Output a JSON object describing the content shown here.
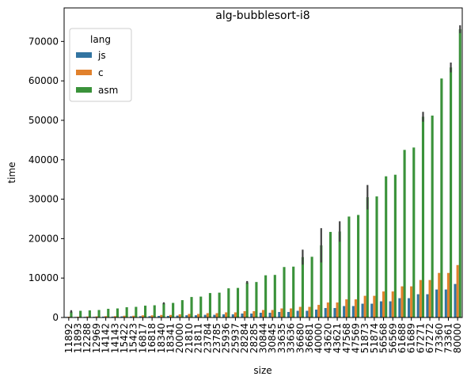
{
  "chart_data": {
    "type": "bar",
    "title": "alg-bubblesort-i8",
    "xlabel": "size",
    "ylabel": "time",
    "ylim": [
      0,
      78500
    ],
    "yticks": [
      0,
      10000,
      20000,
      30000,
      40000,
      50000,
      60000,
      70000
    ],
    "grid": false,
    "legend": {
      "title": "lang",
      "placement": "top-left"
    },
    "categories": [
      "11892",
      "11893",
      "12288",
      "12969",
      "14142",
      "14143",
      "15422",
      "15423",
      "16817",
      "16818",
      "18340",
      "18341",
      "20000",
      "21810",
      "21811",
      "23784",
      "23785",
      "25936",
      "25937",
      "28284",
      "28285",
      "30844",
      "30845",
      "33635",
      "33636",
      "36680",
      "36681",
      "40000",
      "43620",
      "43621",
      "47568",
      "47569",
      "51873",
      "51874",
      "56568",
      "56569",
      "61688",
      "61689",
      "67271",
      "67272",
      "73360",
      "73361",
      "80000"
    ],
    "series": [
      {
        "name": "js",
        "color": "#3274a1",
        "values": [
          150,
          150,
          170,
          180,
          230,
          230,
          280,
          280,
          330,
          330,
          400,
          400,
          480,
          570,
          570,
          680,
          680,
          800,
          800,
          1000,
          1000,
          1200,
          1200,
          1400,
          1400,
          1700,
          1700,
          2000,
          2400,
          2400,
          2900,
          2900,
          3500,
          3500,
          4100,
          4100,
          4900,
          4900,
          5900,
          5900,
          7100,
          7100,
          8500
        ],
        "errors": [
          0,
          0,
          0,
          0,
          0,
          0,
          0,
          0,
          0,
          0,
          0,
          0,
          0,
          0,
          0,
          0,
          0,
          0,
          0,
          0,
          0,
          0,
          0,
          0,
          0,
          0,
          0,
          0,
          0,
          0,
          0,
          0,
          0,
          0,
          0,
          0,
          0,
          0,
          0,
          0,
          0,
          0,
          0
        ]
      },
      {
        "name": "c",
        "color": "#e1812c",
        "values": [
          200,
          200,
          250,
          280,
          350,
          350,
          450,
          450,
          550,
          550,
          650,
          650,
          800,
          900,
          900,
          1100,
          1100,
          1300,
          1300,
          1600,
          1600,
          1900,
          1900,
          2300,
          2300,
          2700,
          2700,
          3200,
          3800,
          3800,
          4600,
          4600,
          5500,
          5500,
          6600,
          6600,
          7900,
          7900,
          9500,
          9500,
          11300,
          11300,
          13300
        ],
        "errors": [
          0,
          0,
          0,
          0,
          0,
          0,
          0,
          0,
          0,
          0,
          0,
          0,
          0,
          0,
          0,
          0,
          0,
          0,
          0,
          0,
          0,
          0,
          0,
          0,
          0,
          0,
          0,
          0,
          0,
          0,
          0,
          0,
          0,
          0,
          0,
          0,
          0,
          0,
          0,
          0,
          0,
          0,
          0
        ]
      },
      {
        "name": "asm",
        "color": "#3a923a",
        "values": [
          1500,
          1700,
          1800,
          1900,
          2200,
          2300,
          2600,
          2700,
          3000,
          3100,
          3600,
          3700,
          4400,
          5200,
          5300,
          6200,
          6300,
          7400,
          7500,
          8900,
          9000,
          10700,
          10800,
          12800,
          12900,
          15300,
          15400,
          18300,
          21700,
          21800,
          25600,
          26000,
          30500,
          30700,
          35800,
          36200,
          42500,
          43100,
          50900,
          51200,
          60600,
          63400,
          73100
        ],
        "errors": [
          700,
          0,
          0,
          0,
          0,
          0,
          0,
          0,
          0,
          0,
          500,
          0,
          0,
          0,
          0,
          0,
          0,
          0,
          0,
          700,
          0,
          0,
          0,
          0,
          0,
          3800,
          0,
          8700,
          0,
          5200,
          0,
          0,
          6200,
          0,
          0,
          0,
          0,
          0,
          2500,
          0,
          0,
          2500,
          2000
        ]
      }
    ]
  }
}
